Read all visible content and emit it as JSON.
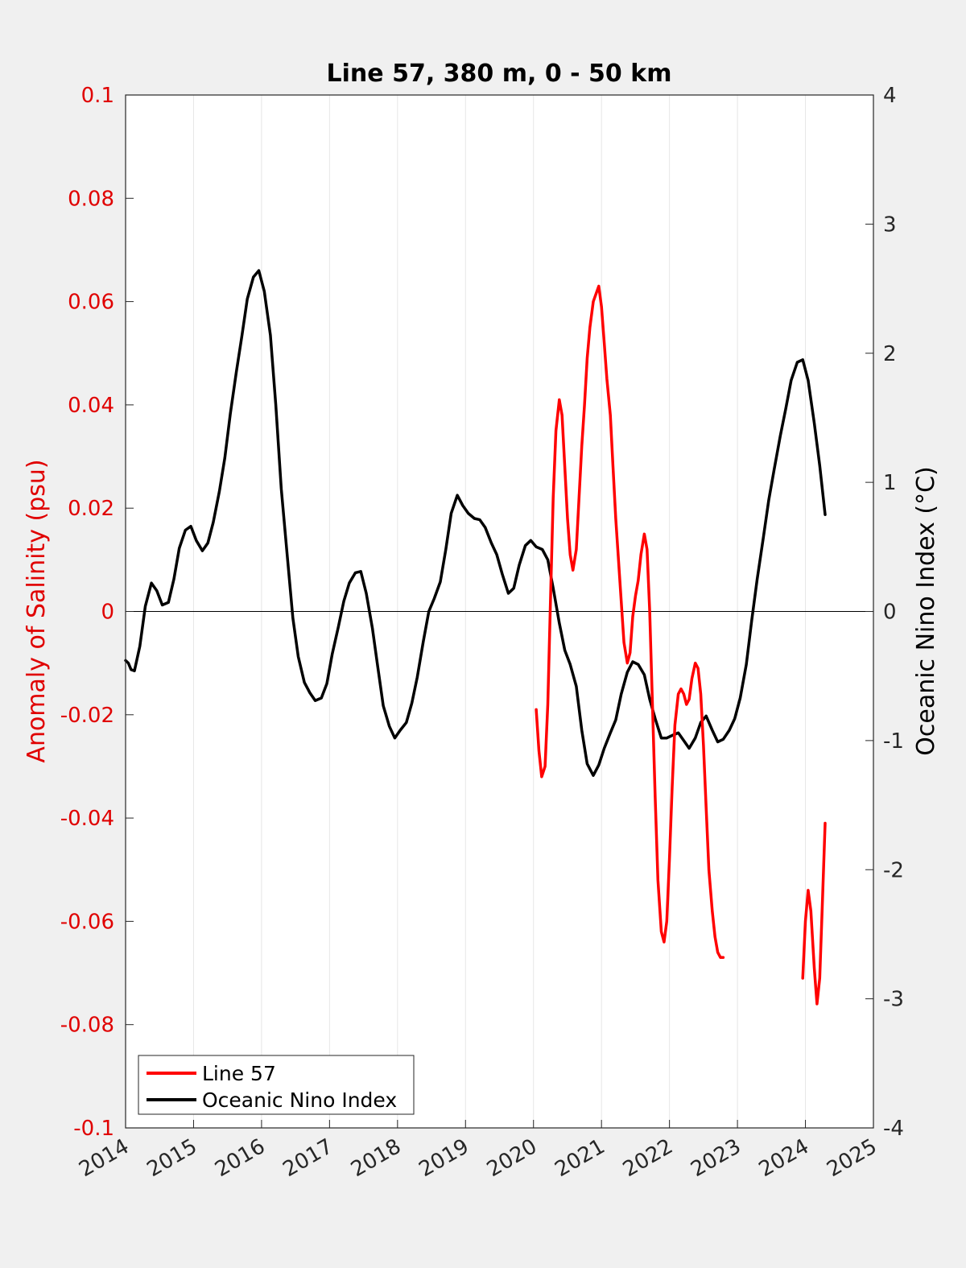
{
  "chart_data": {
    "type": "line",
    "title": "Line 57, 380 m, 0 - 50 km",
    "xlabel": "",
    "ylabel_left": "Anomaly of Salinity (psu)",
    "ylabel_right": "Oceanic Nino Index (°C)",
    "xlim": [
      2014,
      2025
    ],
    "ylim_left": [
      -0.1,
      0.1
    ],
    "ylim_right": [
      -4,
      4
    ],
    "x_ticks": [
      "2014",
      "2015",
      "2016",
      "2017",
      "2018",
      "2019",
      "2020",
      "2021",
      "2022",
      "2023",
      "2024",
      "2025"
    ],
    "y_left_ticks": [
      "0.1",
      "0.08",
      "0.06",
      "0.04",
      "0.02",
      "0",
      "-0.02",
      "-0.04",
      "-0.06",
      "-0.08",
      "-0.1"
    ],
    "y_right_ticks": [
      "4",
      "3",
      "2",
      "1",
      "0",
      "-1",
      "-2",
      "-3",
      "-4"
    ],
    "grid": "vertical",
    "legend_position": "bottom-left",
    "colors": {
      "line57": "#ff0000",
      "oni": "#000000",
      "left_axis": "#e00000",
      "right_axis": "#000000"
    },
    "series": [
      {
        "name": "Line 57",
        "axis": "left",
        "color": "#ff0000",
        "segments": [
          [
            [
              2020.04,
              -0.019
            ],
            [
              2020.08,
              -0.027
            ],
            [
              2020.12,
              -0.032
            ],
            [
              2020.17,
              -0.03
            ],
            [
              2020.21,
              -0.018
            ],
            [
              2020.25,
              0.002
            ],
            [
              2020.29,
              0.022
            ],
            [
              2020.33,
              0.035
            ],
            [
              2020.38,
              0.041
            ],
            [
              2020.42,
              0.038
            ],
            [
              2020.46,
              0.028
            ],
            [
              2020.5,
              0.018
            ],
            [
              2020.54,
              0.011
            ],
            [
              2020.58,
              0.008
            ],
            [
              2020.63,
              0.012
            ],
            [
              2020.67,
              0.022
            ],
            [
              2020.71,
              0.032
            ],
            [
              2020.75,
              0.04
            ],
            [
              2020.79,
              0.049
            ],
            [
              2020.83,
              0.055
            ],
            [
              2020.88,
              0.06
            ],
            [
              2020.96,
              0.063
            ],
            [
              2021.0,
              0.059
            ],
            [
              2021.04,
              0.052
            ],
            [
              2021.08,
              0.045
            ],
            [
              2021.13,
              0.038
            ],
            [
              2021.17,
              0.028
            ],
            [
              2021.21,
              0.018
            ],
            [
              2021.25,
              0.01
            ],
            [
              2021.29,
              0.002
            ],
            [
              2021.33,
              -0.006
            ],
            [
              2021.38,
              -0.01
            ],
            [
              2021.42,
              -0.008
            ],
            [
              2021.46,
              -0.001
            ],
            [
              2021.5,
              0.003
            ],
            [
              2021.54,
              0.006
            ],
            [
              2021.58,
              0.011
            ],
            [
              2021.63,
              0.015
            ],
            [
              2021.67,
              0.012
            ],
            [
              2021.71,
              0.0
            ],
            [
              2021.75,
              -0.018
            ],
            [
              2021.79,
              -0.036
            ],
            [
              2021.83,
              -0.052
            ],
            [
              2021.88,
              -0.062
            ],
            [
              2021.92,
              -0.064
            ],
            [
              2021.96,
              -0.06
            ],
            [
              2022.0,
              -0.048
            ],
            [
              2022.04,
              -0.034
            ],
            [
              2022.08,
              -0.022
            ],
            [
              2022.13,
              -0.016
            ],
            [
              2022.17,
              -0.015
            ],
            [
              2022.21,
              -0.016
            ],
            [
              2022.25,
              -0.018
            ],
            [
              2022.29,
              -0.017
            ],
            [
              2022.33,
              -0.013
            ],
            [
              2022.38,
              -0.01
            ],
            [
              2022.42,
              -0.011
            ],
            [
              2022.46,
              -0.016
            ],
            [
              2022.5,
              -0.026
            ],
            [
              2022.54,
              -0.038
            ],
            [
              2022.58,
              -0.05
            ],
            [
              2022.63,
              -0.058
            ],
            [
              2022.67,
              -0.063
            ],
            [
              2022.71,
              -0.066
            ],
            [
              2022.75,
              -0.067
            ],
            [
              2022.79,
              -0.067
            ]
          ],
          [
            [
              2023.96,
              -0.071
            ],
            [
              2024.0,
              -0.06
            ],
            [
              2024.04,
              -0.054
            ],
            [
              2024.08,
              -0.058
            ],
            [
              2024.13,
              -0.069
            ],
            [
              2024.17,
              -0.076
            ],
            [
              2024.21,
              -0.071
            ],
            [
              2024.25,
              -0.056
            ],
            [
              2024.29,
              -0.041
            ]
          ]
        ]
      },
      {
        "name": "Oceanic Nino Index",
        "axis": "right",
        "color": "#000000",
        "points": [
          [
            2014.0,
            -0.38
          ],
          [
            2014.04,
            -0.4
          ],
          [
            2014.08,
            -0.45
          ],
          [
            2014.13,
            -0.46
          ],
          [
            2014.21,
            -0.27
          ],
          [
            2014.29,
            0.04
          ],
          [
            2014.38,
            0.22
          ],
          [
            2014.46,
            0.16
          ],
          [
            2014.54,
            0.05
          ],
          [
            2014.63,
            0.07
          ],
          [
            2014.71,
            0.25
          ],
          [
            2014.79,
            0.49
          ],
          [
            2014.88,
            0.63
          ],
          [
            2014.96,
            0.66
          ],
          [
            2015.04,
            0.55
          ],
          [
            2015.13,
            0.47
          ],
          [
            2015.21,
            0.53
          ],
          [
            2015.29,
            0.69
          ],
          [
            2015.38,
            0.93
          ],
          [
            2015.46,
            1.19
          ],
          [
            2015.54,
            1.53
          ],
          [
            2015.63,
            1.86
          ],
          [
            2015.71,
            2.13
          ],
          [
            2015.79,
            2.42
          ],
          [
            2015.88,
            2.59
          ],
          [
            2015.96,
            2.64
          ],
          [
            2016.04,
            2.48
          ],
          [
            2016.13,
            2.14
          ],
          [
            2016.21,
            1.6
          ],
          [
            2016.29,
            0.95
          ],
          [
            2016.38,
            0.42
          ],
          [
            2016.46,
            -0.05
          ],
          [
            2016.54,
            -0.35
          ],
          [
            2016.63,
            -0.55
          ],
          [
            2016.71,
            -0.63
          ],
          [
            2016.79,
            -0.69
          ],
          [
            2016.88,
            -0.67
          ],
          [
            2016.96,
            -0.56
          ],
          [
            2017.04,
            -0.33
          ],
          [
            2017.13,
            -0.12
          ],
          [
            2017.21,
            0.08
          ],
          [
            2017.29,
            0.22
          ],
          [
            2017.38,
            0.3
          ],
          [
            2017.46,
            0.31
          ],
          [
            2017.54,
            0.14
          ],
          [
            2017.63,
            -0.13
          ],
          [
            2017.71,
            -0.43
          ],
          [
            2017.79,
            -0.73
          ],
          [
            2017.88,
            -0.89
          ],
          [
            2017.96,
            -0.98
          ],
          [
            2018.04,
            -0.92
          ],
          [
            2018.13,
            -0.86
          ],
          [
            2018.21,
            -0.71
          ],
          [
            2018.29,
            -0.51
          ],
          [
            2018.38,
            -0.23
          ],
          [
            2018.46,
            0.0
          ],
          [
            2018.54,
            0.1
          ],
          [
            2018.63,
            0.23
          ],
          [
            2018.71,
            0.48
          ],
          [
            2018.79,
            0.76
          ],
          [
            2018.88,
            0.9
          ],
          [
            2018.96,
            0.82
          ],
          [
            2019.04,
            0.76
          ],
          [
            2019.13,
            0.72
          ],
          [
            2019.21,
            0.71
          ],
          [
            2019.29,
            0.65
          ],
          [
            2019.38,
            0.53
          ],
          [
            2019.46,
            0.44
          ],
          [
            2019.54,
            0.29
          ],
          [
            2019.63,
            0.14
          ],
          [
            2019.71,
            0.18
          ],
          [
            2019.79,
            0.36
          ],
          [
            2019.88,
            0.51
          ],
          [
            2019.96,
            0.55
          ],
          [
            2020.04,
            0.5
          ],
          [
            2020.13,
            0.48
          ],
          [
            2020.21,
            0.4
          ],
          [
            2020.29,
            0.18
          ],
          [
            2020.38,
            -0.09
          ],
          [
            2020.46,
            -0.3
          ],
          [
            2020.54,
            -0.41
          ],
          [
            2020.63,
            -0.58
          ],
          [
            2020.71,
            -0.92
          ],
          [
            2020.79,
            -1.18
          ],
          [
            2020.88,
            -1.27
          ],
          [
            2020.96,
            -1.19
          ],
          [
            2021.04,
            -1.06
          ],
          [
            2021.13,
            -0.94
          ],
          [
            2021.21,
            -0.84
          ],
          [
            2021.29,
            -0.64
          ],
          [
            2021.38,
            -0.47
          ],
          [
            2021.46,
            -0.39
          ],
          [
            2021.54,
            -0.41
          ],
          [
            2021.63,
            -0.49
          ],
          [
            2021.71,
            -0.68
          ],
          [
            2021.79,
            -0.83
          ],
          [
            2021.88,
            -0.98
          ],
          [
            2021.96,
            -0.98
          ],
          [
            2022.04,
            -0.96
          ],
          [
            2022.13,
            -0.94
          ],
          [
            2022.21,
            -1.0
          ],
          [
            2022.29,
            -1.06
          ],
          [
            2022.38,
            -0.98
          ],
          [
            2022.46,
            -0.86
          ],
          [
            2022.54,
            -0.81
          ],
          [
            2022.63,
            -0.92
          ],
          [
            2022.71,
            -1.01
          ],
          [
            2022.79,
            -0.99
          ],
          [
            2022.88,
            -0.92
          ],
          [
            2022.96,
            -0.83
          ],
          [
            2023.04,
            -0.67
          ],
          [
            2023.13,
            -0.41
          ],
          [
            2023.21,
            -0.07
          ],
          [
            2023.29,
            0.25
          ],
          [
            2023.38,
            0.57
          ],
          [
            2023.46,
            0.86
          ],
          [
            2023.54,
            1.1
          ],
          [
            2023.63,
            1.36
          ],
          [
            2023.71,
            1.57
          ],
          [
            2023.79,
            1.79
          ],
          [
            2023.88,
            1.93
          ],
          [
            2023.96,
            1.95
          ],
          [
            2024.04,
            1.79
          ],
          [
            2024.13,
            1.46
          ],
          [
            2024.21,
            1.13
          ],
          [
            2024.29,
            0.75
          ]
        ]
      }
    ]
  }
}
